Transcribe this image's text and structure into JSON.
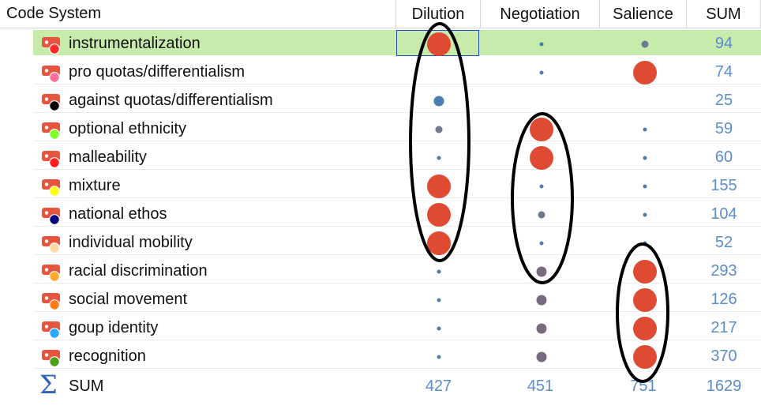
{
  "header": {
    "code_system": "Code System",
    "columns": [
      "Dilution",
      "Negotiation",
      "Salience",
      "SUM"
    ]
  },
  "colors": {
    "highlight_row": "#c6ebab",
    "large_circle": "#de4b32",
    "small_dot": "#4c7db3",
    "mid_dot": "#7a6a80",
    "sum_text": "#5b8ccc"
  },
  "rows": [
    {
      "label": "instrumentalization",
      "icon_color": "#ff2a2a",
      "cells": [
        "large",
        "tiny",
        "small"
      ],
      "sum": "94",
      "highlighted": true
    },
    {
      "label": "pro quotas/differentialism",
      "icon_color": "#ff6f9a",
      "cells": [
        "none",
        "tiny",
        "large"
      ],
      "sum": "74"
    },
    {
      "label": "against quotas/differentialism",
      "icon_color": "#000000",
      "cells": [
        "medium",
        "none",
        "none"
      ],
      "sum": "25"
    },
    {
      "label": "optional ethnicity",
      "icon_color": "#7fff2a",
      "cells": [
        "small",
        "large",
        "tiny"
      ],
      "sum": "59"
    },
    {
      "label": "malleability",
      "icon_color": "#ff1f1f",
      "cells": [
        "tiny",
        "large",
        "tiny"
      ],
      "sum": "60"
    },
    {
      "label": "mixture",
      "icon_color": "#ffff1a",
      "cells": [
        "large",
        "tiny",
        "tiny"
      ],
      "sum": "155"
    },
    {
      "label": "national ethos",
      "icon_color": "#00007a",
      "cells": [
        "large",
        "small",
        "tiny"
      ],
      "sum": "104"
    },
    {
      "label": "individual mobility",
      "icon_color": "#ffd9a6",
      "cells": [
        "large",
        "tiny",
        "tiny"
      ],
      "sum": "52"
    },
    {
      "label": "racial discrimination",
      "icon_color": "#ffaa2a",
      "cells": [
        "tiny",
        "mid",
        "large"
      ],
      "sum": "293"
    },
    {
      "label": "social movement",
      "icon_color": "#ff7a1a",
      "cells": [
        "tiny",
        "mid",
        "large"
      ],
      "sum": "126"
    },
    {
      "label": "goup identity",
      "icon_color": "#29a9ff",
      "cells": [
        "tiny",
        "mid",
        "large"
      ],
      "sum": "217"
    },
    {
      "label": "recognition",
      "icon_color": "#4e9e1a",
      "cells": [
        "tiny",
        "mid",
        "large"
      ],
      "sum": "370"
    }
  ],
  "sum_row": {
    "label": "SUM",
    "values": [
      "427",
      "451",
      "751",
      "1629"
    ]
  }
}
